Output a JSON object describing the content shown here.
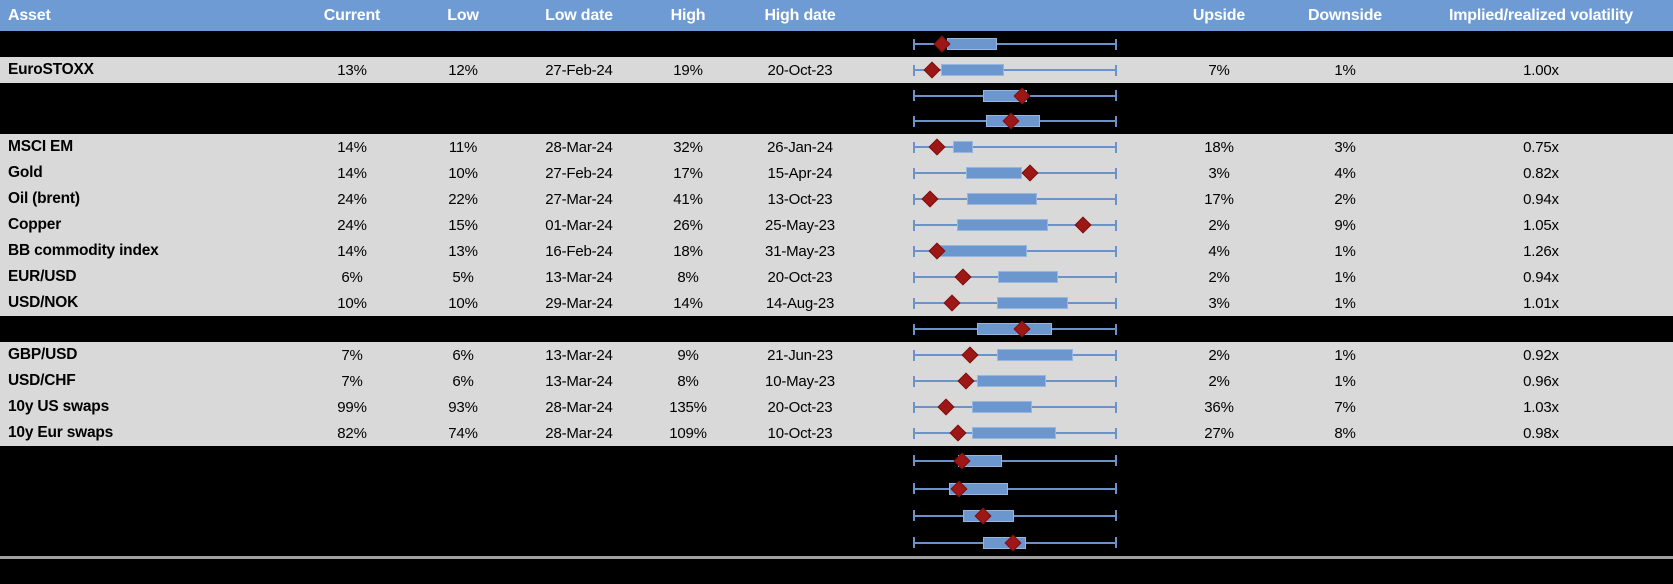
{
  "columns": {
    "asset": "Asset",
    "current": "Current",
    "low": "Low",
    "low_date": "Low date",
    "high": "High",
    "high_date": "High date",
    "upside": "Upside",
    "downside": "Downside",
    "implied_realized": "Implied/realized volatility"
  },
  "colors": {
    "header_bg": "#6E9BD4",
    "header_text": "#FFFFFF",
    "row_bg": "#D9D9D9",
    "hidden_row_bg": "#000000",
    "box_fill": "#6B96CE",
    "box_border": "#96B6E0",
    "whisker": "#6A93CC",
    "marker": "#9D1717",
    "divider": "#A0A0A0"
  },
  "chart_data": {
    "type": "table",
    "note_plot_column": "horizontal range plot per row: whiskers span full low-high range (fractions 0-1), blue box = range_bar, red diamond = marker position",
    "rows": [
      {
        "type": "hidden",
        "plot": {
          "range_bar": [
            0.168,
            0.41
          ],
          "marker": 0.141
        }
      },
      {
        "type": "data",
        "asset": "EuroSTOXX",
        "current": "13%",
        "low": "12%",
        "low_date": "27-Feb-24",
        "high": "19%",
        "high_date": "20-Oct-23",
        "upside": "7%",
        "downside": "1%",
        "implied_realized": "1.00x",
        "plot": {
          "range_bar": [
            0.139,
            0.448
          ],
          "marker": 0.092
        }
      },
      {
        "type": "hidden",
        "plot": {
          "range_bar": [
            0.343,
            0.559
          ],
          "marker": 0.536
        }
      },
      {
        "type": "hidden",
        "plot": {
          "range_bar": [
            0.356,
            0.623
          ],
          "marker": 0.479
        }
      },
      {
        "type": "data",
        "asset": "MSCI EM",
        "current": "14%",
        "low": "11%",
        "low_date": "28-Mar-24",
        "high": "32%",
        "high_date": "26-Jan-24",
        "upside": "18%",
        "downside": "3%",
        "implied_realized": "0.75x",
        "plot": {
          "range_bar": [
            0.198,
            0.293
          ],
          "marker": 0.116
        }
      },
      {
        "type": "data",
        "asset": "Gold",
        "current": "14%",
        "low": "10%",
        "low_date": "27-Feb-24",
        "high": "17%",
        "high_date": "15-Apr-24",
        "upside": "3%",
        "downside": "4%",
        "implied_realized": "0.82x",
        "plot": {
          "range_bar": [
            0.258,
            0.533
          ],
          "marker": 0.574
        }
      },
      {
        "type": "data",
        "asset": "Oil (brent)",
        "current": "24%",
        "low": "22%",
        "low_date": "27-Mar-24",
        "high": "41%",
        "high_date": "13-Oct-23",
        "upside": "17%",
        "downside": "2%",
        "implied_realized": "0.94x",
        "plot": {
          "range_bar": [
            0.263,
            0.606
          ],
          "marker": 0.083
        }
      },
      {
        "type": "data",
        "asset": "Copper",
        "current": "24%",
        "low": "15%",
        "low_date": "01-Mar-24",
        "high": "26%",
        "high_date": "25-May-23",
        "upside": "2%",
        "downside": "9%",
        "implied_realized": "1.05x",
        "plot": {
          "range_bar": [
            0.216,
            0.663
          ],
          "marker": 0.832
        }
      },
      {
        "type": "data",
        "asset": "BB commodity index",
        "current": "14%",
        "low": "13%",
        "low_date": "16-Feb-24",
        "high": "18%",
        "high_date": "31-May-23",
        "upside": "4%",
        "downside": "1%",
        "implied_realized": "1.26x",
        "plot": {
          "range_bar": [
            0.123,
            0.557
          ],
          "marker": 0.118
        }
      },
      {
        "type": "data",
        "asset": "EUR/USD",
        "current": "6%",
        "low": "5%",
        "low_date": "13-Mar-24",
        "high": "8%",
        "high_date": "20-Oct-23",
        "upside": "2%",
        "downside": "1%",
        "implied_realized": "0.94x",
        "plot": {
          "range_bar": [
            0.418,
            0.712
          ],
          "marker": 0.244
        }
      },
      {
        "type": "data",
        "asset": "USD/NOK",
        "current": "10%",
        "low": "10%",
        "low_date": "29-Mar-24",
        "high": "14%",
        "high_date": "14-Aug-23",
        "upside": "3%",
        "downside": "1%",
        "implied_realized": "1.01x",
        "plot": {
          "range_bar": [
            0.41,
            0.761
          ],
          "marker": 0.19
        }
      },
      {
        "type": "hidden",
        "plot": {
          "range_bar": [
            0.312,
            0.68
          ],
          "marker": 0.533
        }
      },
      {
        "type": "data",
        "asset": "GBP/USD",
        "current": "7%",
        "low": "6%",
        "low_date": "13-Mar-24",
        "high": "9%",
        "high_date": "21-Jun-23",
        "upside": "2%",
        "downside": "1%",
        "implied_realized": "0.92x",
        "plot": {
          "range_bar": [
            0.41,
            0.786
          ],
          "marker": 0.279
        }
      },
      {
        "type": "data",
        "asset": "USD/CHF",
        "current": "7%",
        "low": "6%",
        "low_date": "13-Mar-24",
        "high": "8%",
        "high_date": "10-May-23",
        "upside": "2%",
        "downside": "1%",
        "implied_realized": "0.96x",
        "plot": {
          "range_bar": [
            0.315,
            0.652
          ],
          "marker": 0.258
        }
      },
      {
        "type": "data",
        "asset": "10y US swaps",
        "current": "99%",
        "low": "93%",
        "low_date": "28-Mar-24",
        "high": "135%",
        "high_date": "20-Oct-23",
        "upside": "36%",
        "downside": "7%",
        "implied_realized": "1.03x",
        "plot": {
          "range_bar": [
            0.288,
            0.582
          ],
          "marker": 0.162
        }
      },
      {
        "type": "data",
        "asset": "10y Eur swaps",
        "current": "82%",
        "low": "74%",
        "low_date": "28-Mar-24",
        "high": "109%",
        "high_date": "10-Oct-23",
        "upside": "27%",
        "downside": "8%",
        "implied_realized": "0.98x",
        "plot": {
          "range_bar": [
            0.288,
            0.7
          ],
          "marker": 0.219
        }
      },
      {
        "type": "hidden",
        "plot": {
          "range_bar": [
            0.222,
            0.435
          ],
          "marker": 0.239
        }
      },
      {
        "type": "hidden",
        "plot": {
          "range_bar": [
            0.178,
            0.464
          ],
          "marker": 0.227
        }
      },
      {
        "type": "hidden",
        "plot": {
          "range_bar": [
            0.244,
            0.497
          ],
          "marker": 0.345
        }
      },
      {
        "type": "hidden",
        "plot": {
          "range_bar": [
            0.345,
            0.554
          ],
          "marker": 0.492
        }
      }
    ]
  }
}
